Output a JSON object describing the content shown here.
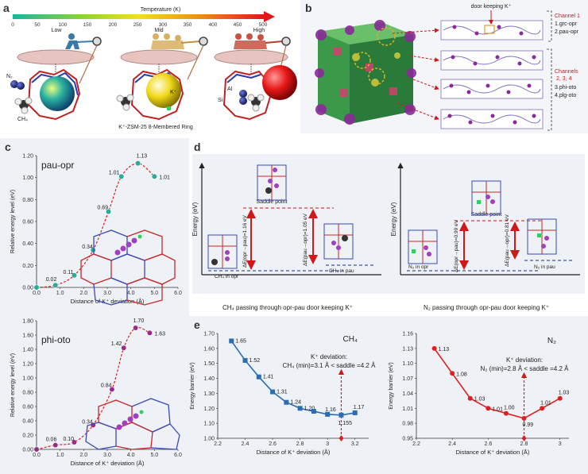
{
  "panels": {
    "a": "a",
    "b": "b",
    "c": "c",
    "d": "d",
    "e": "e"
  },
  "panel_a": {
    "colorbar_title": "Temperature (K)",
    "colorbar_ticks": [
      "0",
      "50",
      "100",
      "150",
      "200",
      "250",
      "300",
      "350",
      "400",
      "450",
      "500"
    ],
    "levels": [
      "Low",
      "Mid",
      "High"
    ],
    "caption": "K⁺-ZSM-25 8-Membered Ring",
    "labels": {
      "n2": "N₂",
      "ch4": "CH₄",
      "k": "K⁺",
      "al": "Al",
      "si": "Si"
    },
    "colors": {
      "low_sphere": "#2aa6a6",
      "mid_sphere": "#e8d21a",
      "high_sphere": "#e02020"
    }
  },
  "panel_b": {
    "door_label": "door keeping K⁺",
    "channel1_title": "Channel 1",
    "channel1_items": [
      "1.grc-opr",
      "2.pau-opr"
    ],
    "channels234_title": "Channels",
    "channels234_sub": "2, 3, 4",
    "channels234_items": [
      "3.phi-oto",
      "4.plg-oto"
    ]
  },
  "panel_c": {
    "ylabel": "Relative energy level (eV)",
    "xlabel": "Distance of K⁺ deviation (Å)"
  },
  "panel_d": {
    "ylabel": "Energy (eV)",
    "saddle": "Saddle point",
    "ch4": {
      "from_label": "CH₄ in opr",
      "to_label": "CH₄ in pau",
      "barrier_fwd": "ΔE(opr→pau)=1.16 eV",
      "barrier_rev": "ΔE(pau→opr)=1.05 eV",
      "caption": "CH₄ passing through opr-pau door keeping K⁺"
    },
    "n2": {
      "from_label": "N₂ in opr",
      "to_label": "N₂ in pau",
      "barrier_fwd": "ΔE(opr→pau)=0.99 eV",
      "barrier_rev": "ΔE(pau→opr)=0.81 eV",
      "caption": "N₂ passing through opr-pau door keeping K⁺"
    }
  },
  "panel_e": {
    "ch4_annot_1": "K⁺ deviation:",
    "ch4_annot_2": "CH₄ (min)=3.1 Å < saddle =4.2 Å",
    "n2_annot_1": "K⁺ deviation:",
    "n2_annot_2": "N₂ (min)=2.8 Å < saddle =4.2 Å"
  },
  "chart_data": [
    {
      "id": "c-pau-opr",
      "type": "scatter",
      "title": "pau-opr",
      "xlabel": "Distance of K⁺ deviation (Å)",
      "ylabel": "Relative energy level (eV)",
      "xlim": [
        0,
        6
      ],
      "ylim": [
        0,
        1.2
      ],
      "xticks": [
        "0.0",
        "1.0",
        "2.0",
        "3.0",
        "4.0",
        "5.0",
        "6.0"
      ],
      "yticks": [
        "0.00",
        "0.20",
        "0.40",
        "0.60",
        "0.80",
        "1.00",
        "1.20"
      ],
      "x": [
        0,
        0.8,
        1.6,
        2.4,
        3.05,
        3.6,
        4.3,
        5.0
      ],
      "y": [
        0.0,
        0.02,
        0.11,
        0.34,
        0.69,
        1.01,
        1.13,
        1.01
      ],
      "labels": [
        "0.00",
        "0.02",
        "0.11",
        "0.34",
        "0.69",
        "1.01",
        "1.13",
        "1.01"
      ],
      "color": "#2aa89a"
    },
    {
      "id": "c-phi-oto",
      "type": "scatter",
      "title": "phi-oto",
      "xlabel": "Distance of K⁺ deviation (Å)",
      "ylabel": "Relative energy level (eV)",
      "xlim": [
        0,
        6
      ],
      "ylim": [
        0,
        1.8
      ],
      "xticks": [
        "0.0",
        "1.0",
        "2.0",
        "3.0",
        "4.0",
        "5.0",
        "6.0"
      ],
      "yticks": [
        "0.00",
        "0.20",
        "0.40",
        "0.60",
        "0.80",
        "1.00",
        "1.20",
        "1.40",
        "1.60",
        "1.80"
      ],
      "x": [
        0,
        0.8,
        1.6,
        2.4,
        3.2,
        3.7,
        4.2,
        4.8
      ],
      "y": [
        0.0,
        0.06,
        0.1,
        0.34,
        0.84,
        1.42,
        1.7,
        1.63
      ],
      "labels": [
        "0.00",
        "0.06",
        "0.10",
        "0.34",
        "0.84",
        "1.42",
        "1.70",
        "1.63"
      ],
      "color": "#9a2a8a"
    },
    {
      "id": "e-ch4",
      "type": "line",
      "title": "CH₄",
      "xlabel": "Distance of K⁺ deviation (Å)",
      "ylabel": "Energy barrier (eV)",
      "xlim": [
        2.2,
        3.3
      ],
      "ylim": [
        1.0,
        1.7
      ],
      "xticks": [
        "2.2",
        "2.4",
        "2.6",
        "2.8",
        "3",
        "3.2"
      ],
      "yticks": [
        "1.00",
        "1.10",
        "1.20",
        "1.30",
        "1.40",
        "1.50",
        "1.60",
        "1.70"
      ],
      "x": [
        2.3,
        2.4,
        2.5,
        2.6,
        2.7,
        2.8,
        2.9,
        3.0,
        3.1,
        3.2
      ],
      "y": [
        1.65,
        1.52,
        1.41,
        1.31,
        1.24,
        1.2,
        1.18,
        1.16,
        1.155,
        1.17
      ],
      "labels": [
        "1.65",
        "1.52",
        "1.41",
        "1.31",
        "1.24",
        "1.20",
        "",
        "1.16",
        "1.155",
        "1.17"
      ],
      "min_x": 3.1,
      "color": "#2b6cb5"
    },
    {
      "id": "e-n2",
      "type": "line",
      "title": "N₂",
      "xlabel": "Distance of K⁺ deviation (Å)",
      "ylabel": "Energy barrier (eV)",
      "xlim": [
        2.2,
        3.05
      ],
      "ylim": [
        0.95,
        1.16
      ],
      "xticks": [
        "2.2",
        "2.4",
        "2.6",
        "2.8",
        "3"
      ],
      "yticks": [
        "0.95",
        "0.98",
        "1.01",
        "1.04",
        "1.07",
        "1.10",
        "1.13",
        "1.16"
      ],
      "x": [
        2.3,
        2.4,
        2.5,
        2.6,
        2.7,
        2.8,
        2.9,
        3.0
      ],
      "y": [
        1.13,
        1.08,
        1.03,
        1.01,
        1.0,
        0.99,
        1.01,
        1.03
      ],
      "labels": [
        "1.13",
        "1.08",
        "1.03",
        "1.01",
        "1.00",
        "0.99",
        "1.01",
        "1.03"
      ],
      "min_x": 2.8,
      "color": "#e02020"
    }
  ]
}
